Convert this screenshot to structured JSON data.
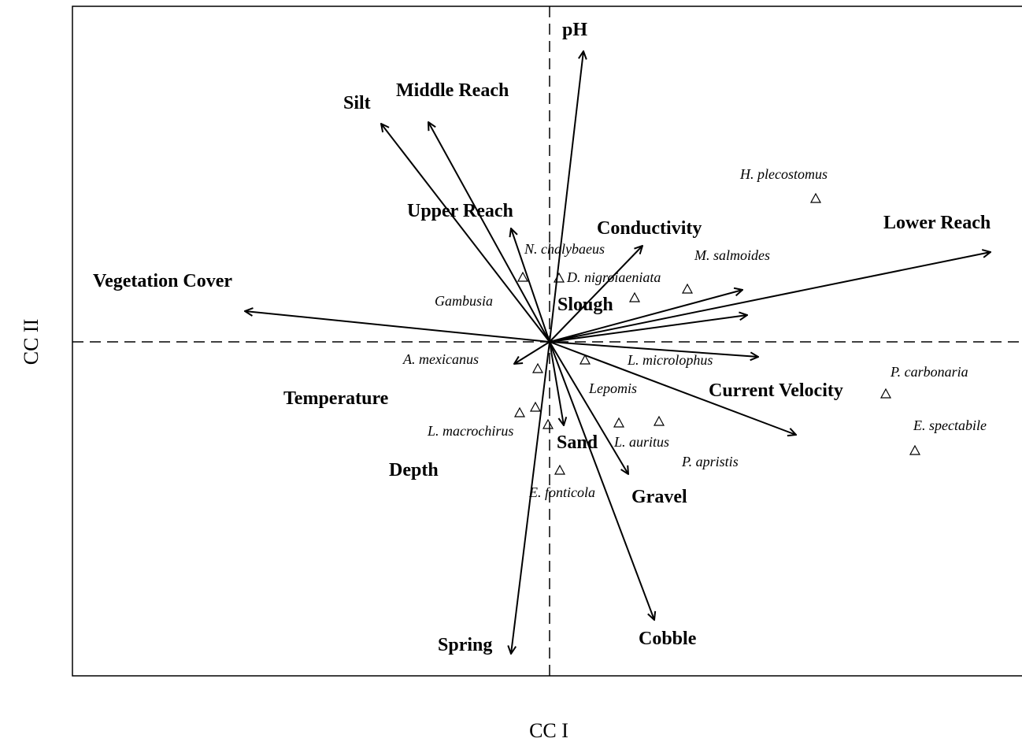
{
  "chart_data": {
    "type": "biplot",
    "x_label": "CC I",
    "y_label": "CC II",
    "xlim": [
      -3.03,
      3.0
    ],
    "ylim": [
      -2.12,
      2.13
    ],
    "color": "#000000",
    "arrows": {
      "names": [
        "pH",
        "Middle Reach",
        "Silt",
        "Upper Reach",
        "Conductivity",
        "Lower Reach",
        "Vegetation Cover",
        null,
        "Slough",
        "Depth",
        "Current Velocity",
        "Temperature",
        "Sand",
        "Gravel",
        "Cobble",
        "Spring"
      ],
      "x": [
        0.215,
        -0.77,
        -1.07,
        -0.245,
        0.59,
        2.8,
        -1.935,
        1.225,
        1.255,
        1.325,
        1.565,
        -0.225,
        0.09,
        0.5,
        0.665,
        -0.245
      ],
      "y": [
        1.845,
        1.395,
        1.385,
        0.72,
        0.61,
        0.57,
        0.195,
        0.33,
        0.17,
        -0.095,
        -0.59,
        -0.14,
        -0.53,
        -0.84,
        -1.765,
        -1.98
      ]
    },
    "points": {
      "names": [
        "Gambusia",
        "N. chalybaeus",
        "D. nigroiaeniata",
        "M. salmoides",
        "H. plecostomus",
        "A. mexicanus",
        "L. microlophus",
        "Lepomis",
        null,
        "L. macrochirus",
        "E. fonticola",
        "L. auritus",
        "P. apristis",
        "P. carbonaria",
        "E. spectabile"
      ],
      "x": [
        -0.17,
        0.06,
        0.54,
        0.875,
        1.69,
        -0.075,
        0.225,
        -0.09,
        -0.19,
        -0.01,
        0.065,
        0.44,
        0.695,
        2.135,
        2.32
      ],
      "y": [
        0.41,
        0.405,
        0.28,
        0.335,
        0.91,
        -0.17,
        -0.115,
        -0.415,
        -0.45,
        -0.525,
        -0.815,
        -0.515,
        -0.505,
        -0.33,
        -0.69
      ]
    }
  }
}
